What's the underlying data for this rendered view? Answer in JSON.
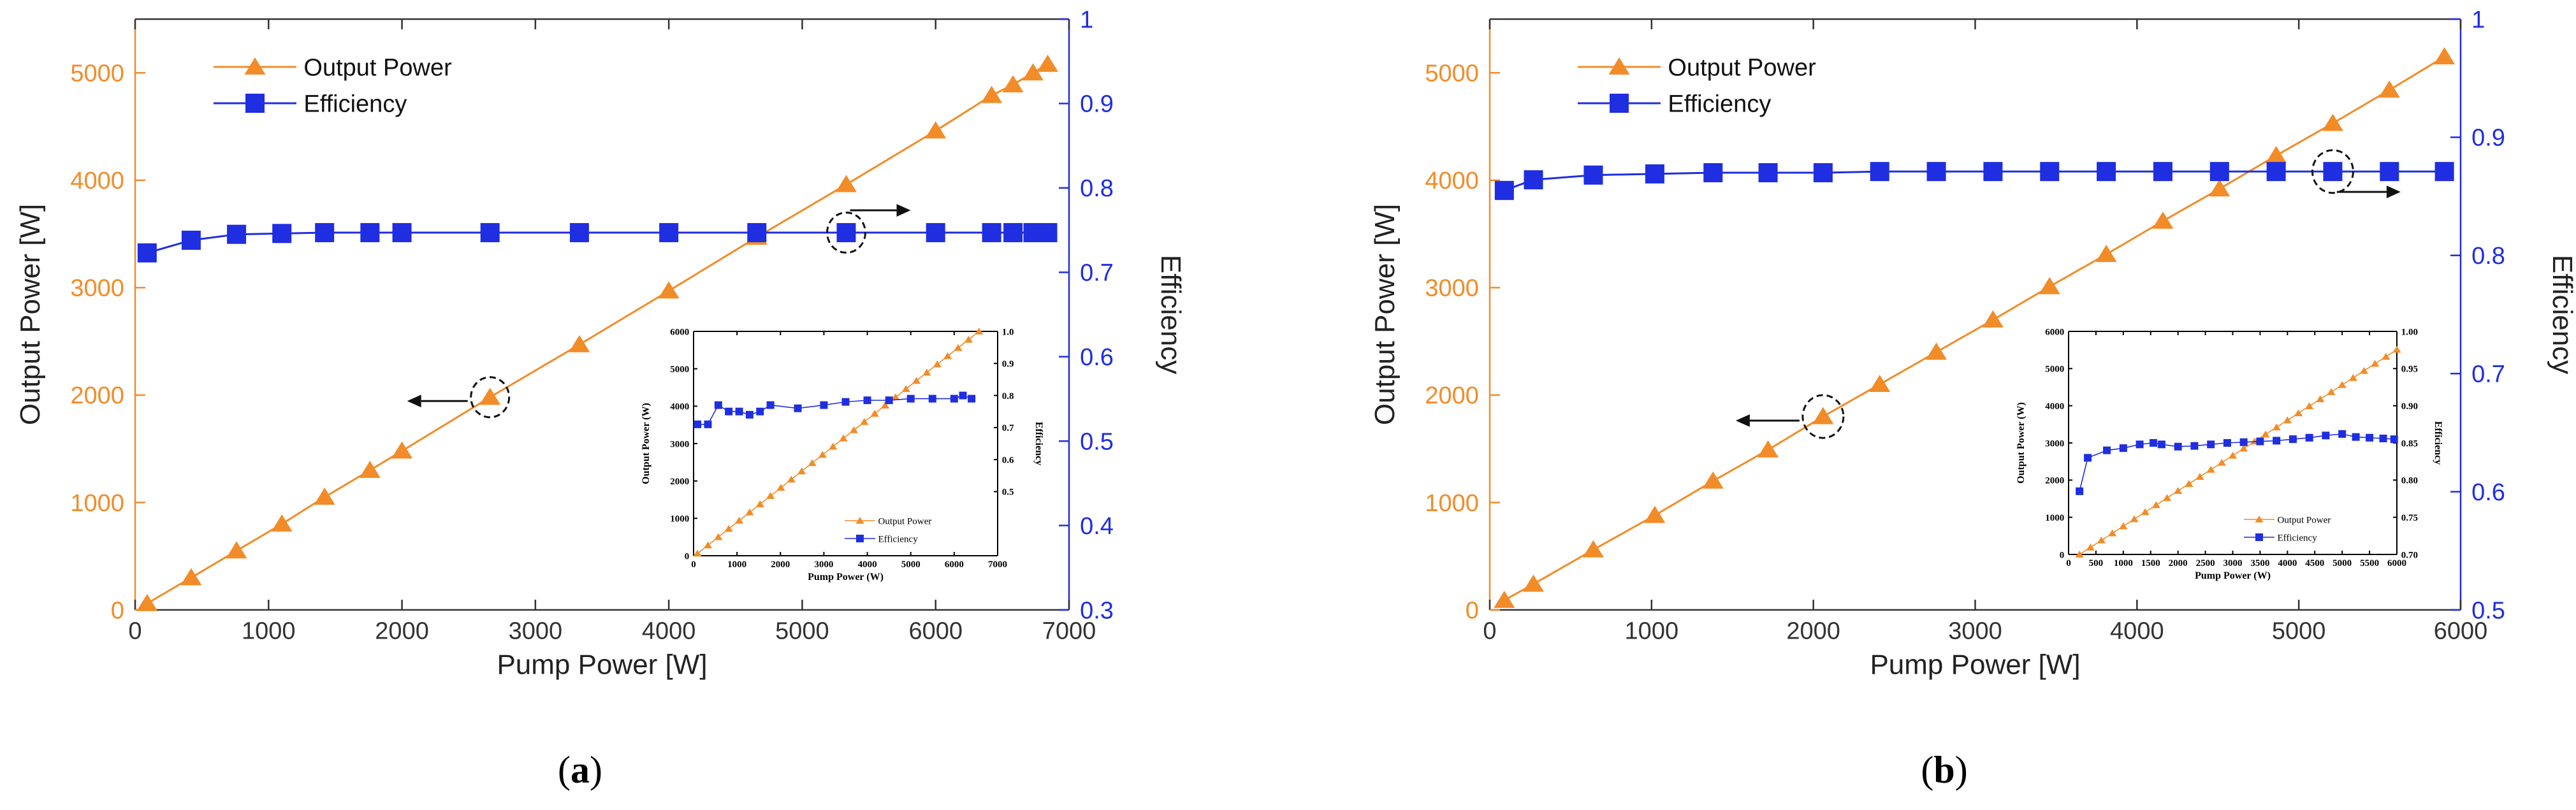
{
  "panels": [
    {
      "label_open": "(",
      "label_letter": "a",
      "label_close": ")"
    },
    {
      "label_open": "(",
      "label_letter": "b",
      "label_close": ")"
    }
  ],
  "colors": {
    "orange": "#F28C28",
    "blue": "#1F2EE0",
    "black": "#000000"
  },
  "chart_data": [
    {
      "type": "line",
      "xlabel": "Pump Power [W]",
      "ylabel_left": "Output Power [W]",
      "ylabel_right": "Efficiency",
      "xlim": [
        0,
        7000
      ],
      "ylim_left": [
        0,
        5500
      ],
      "ylim_right": [
        0.3,
        1
      ],
      "xticks": [
        0,
        1000,
        2000,
        3000,
        4000,
        5000,
        6000,
        7000
      ],
      "yticks_left": [
        0,
        1000,
        2000,
        3000,
        4000,
        5000
      ],
      "yticks_right": [
        0.3,
        0.4,
        0.5,
        0.6,
        0.7,
        0.8,
        0.9,
        1
      ],
      "legend_position": "top-left",
      "grid": false,
      "series": [
        {
          "name": "Output Power",
          "axis": "left",
          "marker": "triangle",
          "x": [
            90,
            420,
            760,
            1100,
            1420,
            1760,
            2000,
            2660,
            3330,
            4000,
            4660,
            5330,
            6000,
            6420,
            6580,
            6730,
            6840
          ],
          "y": [
            60,
            300,
            550,
            800,
            1050,
            1300,
            1480,
            1980,
            2470,
            2970,
            3470,
            3960,
            4460,
            4790,
            4890,
            5000,
            5080
          ]
        },
        {
          "name": "Efficiency",
          "axis": "right",
          "marker": "square",
          "x": [
            90,
            420,
            760,
            1100,
            1420,
            1760,
            2000,
            2660,
            3330,
            4000,
            4660,
            5330,
            6000,
            6420,
            6580,
            6730,
            6840
          ],
          "y": [
            0.723,
            0.738,
            0.745,
            0.746,
            0.747,
            0.747,
            0.747,
            0.747,
            0.747,
            0.747,
            0.747,
            0.747,
            0.747,
            0.747,
            0.747,
            0.747,
            0.747
          ]
        }
      ],
      "annotations": {
        "circle_left": {
          "x": 2660,
          "y": 1980,
          "arrow": "left"
        },
        "circle_right": {
          "x": 5330,
          "y_right": 0.747,
          "arrow": "right"
        }
      },
      "inset": {
        "xlabel": "Pump Power (W)",
        "ylabel_left": "Output Power (W)",
        "ylabel_right": "Efficiency",
        "xlim": [
          0,
          7000
        ],
        "ylim_left": [
          0,
          6000
        ],
        "ylim_right": [
          0.3,
          1.0
        ],
        "xticks": [
          0,
          1000,
          2000,
          3000,
          4000,
          5000,
          6000,
          7000
        ],
        "yticks_left": [
          0,
          1000,
          2000,
          3000,
          4000,
          5000,
          6000
        ],
        "yticks_right": [
          0.5,
          0.6,
          0.7,
          0.8,
          0.9,
          1.0
        ],
        "yticks_right_labels": [
          "0.5",
          "0.6",
          "0.7",
          "0.8",
          "0.9",
          "1.0"
        ],
        "series": [
          {
            "name": "Output Power",
            "axis": "left",
            "marker": "triangle",
            "x": [
              90,
              330,
              570,
              810,
              1050,
              1290,
              1530,
              1770,
              2010,
              2250,
              2490,
              2730,
              2970,
              3210,
              3450,
              3690,
              3930,
              4170,
              4410,
              4650,
              4890,
              5130,
              5370,
              5610,
              5850,
              6090,
              6330,
              6570
            ],
            "y": [
              60,
              280,
              500,
              720,
              940,
              1160,
              1380,
              1600,
              1820,
              2040,
              2260,
              2480,
              2700,
              2920,
              3140,
              3360,
              3580,
              3800,
              4020,
              4240,
              4460,
              4680,
              4900,
              5120,
              5340,
              5560,
              5780,
              6000
            ]
          },
          {
            "name": "Efficiency",
            "axis": "right",
            "marker": "square",
            "x": [
              90,
              330,
              570,
              810,
              1050,
              1290,
              1530,
              1770,
              2400,
              3000,
              3500,
              4000,
              4500,
              5000,
              5500,
              6000,
              6200,
              6400
            ],
            "y": [
              0.71,
              0.71,
              0.77,
              0.75,
              0.75,
              0.74,
              0.75,
              0.77,
              0.76,
              0.77,
              0.78,
              0.785,
              0.785,
              0.79,
              0.79,
              0.79,
              0.8,
              0.79
            ]
          }
        ]
      }
    },
    {
      "type": "line",
      "xlabel": "Pump Power [W]",
      "ylabel_left": "Output Power [W]",
      "ylabel_right": "Efficiency",
      "xlim": [
        0,
        6000
      ],
      "ylim_left": [
        0,
        5500
      ],
      "ylim_right": [
        0.5,
        1
      ],
      "xticks": [
        0,
        1000,
        2000,
        3000,
        4000,
        5000,
        6000
      ],
      "yticks_left": [
        0,
        1000,
        2000,
        3000,
        4000,
        5000
      ],
      "yticks_right": [
        0.5,
        0.6,
        0.7,
        0.8,
        0.9,
        1
      ],
      "legend_position": "top-left",
      "grid": false,
      "series": [
        {
          "name": "Output Power",
          "axis": "left",
          "marker": "triangle",
          "x": [
            90,
            270,
            640,
            1020,
            1380,
            1720,
            2060,
            2410,
            2760,
            3110,
            3460,
            3810,
            4160,
            4510,
            4860,
            5210,
            5560,
            5900
          ],
          "y": [
            90,
            240,
            560,
            880,
            1200,
            1490,
            1800,
            2100,
            2400,
            2700,
            3010,
            3310,
            3620,
            3920,
            4230,
            4530,
            4840,
            5150
          ]
        },
        {
          "name": "Efficiency",
          "axis": "right",
          "marker": "square",
          "x": [
            90,
            270,
            640,
            1020,
            1380,
            1720,
            2060,
            2410,
            2760,
            3110,
            3460,
            3810,
            4160,
            4510,
            4860,
            5210,
            5560,
            5900
          ],
          "y": [
            0.855,
            0.864,
            0.868,
            0.869,
            0.87,
            0.87,
            0.87,
            0.871,
            0.871,
            0.871,
            0.871,
            0.871,
            0.871,
            0.871,
            0.871,
            0.871,
            0.871,
            0.871
          ]
        }
      ],
      "annotations": {
        "circle_left": {
          "x": 2060,
          "y": 1800,
          "arrow": "left"
        },
        "circle_right": {
          "x": 5210,
          "y_right": 0.871,
          "arrow": "right"
        }
      },
      "inset": {
        "xlabel": "Pump Power (W)",
        "ylabel_left": "Output Power (W)",
        "ylabel_right": "Efficiency",
        "xlim": [
          0,
          6000
        ],
        "ylim_left": [
          0,
          6000
        ],
        "ylim_right": [
          0.7,
          1.0
        ],
        "xticks": [
          0,
          500,
          1000,
          1500,
          2000,
          2500,
          3000,
          3500,
          4000,
          4500,
          5000,
          5500,
          6000
        ],
        "yticks_left": [
          0,
          1000,
          2000,
          3000,
          4000,
          5000,
          6000
        ],
        "yticks_right": [
          0.7,
          0.75,
          0.8,
          0.85,
          0.9,
          0.95,
          1.0
        ],
        "yticks_right_labels": [
          "0.70",
          "0.75",
          "0.80",
          "0.85",
          "0.90",
          "0.95",
          "1.00"
        ],
        "series": [
          {
            "name": "Output Power",
            "axis": "left",
            "marker": "triangle",
            "x": [
              200,
              400,
              600,
              800,
              1000,
              1200,
              1400,
              1600,
              1800,
              2000,
              2200,
              2400,
              2600,
              2800,
              3000,
              3200,
              3400,
              3600,
              3800,
              4000,
              4200,
              4400,
              4600,
              4800,
              5000,
              5200,
              5400,
              5600,
              5800,
              6000
            ],
            "y": [
              0,
              190,
              380,
              570,
              760,
              950,
              1140,
              1330,
              1520,
              1710,
              1900,
              2090,
              2280,
              2470,
              2660,
              2850,
              3040,
              3230,
              3420,
              3610,
              3800,
              3990,
              4180,
              4370,
              4560,
              4750,
              4940,
              5130,
              5320,
              5510
            ]
          },
          {
            "name": "Efficiency",
            "axis": "right",
            "marker": "square",
            "x": [
              200,
              350,
              700,
              1000,
              1300,
              1550,
              1700,
              2000,
              2300,
              2600,
              2900,
              3200,
              3500,
              3800,
              4100,
              4400,
              4700,
              5000,
              5250,
              5500,
              5750,
              5950
            ],
            "y": [
              0.785,
              0.83,
              0.84,
              0.843,
              0.848,
              0.85,
              0.848,
              0.845,
              0.846,
              0.848,
              0.85,
              0.851,
              0.852,
              0.853,
              0.855,
              0.857,
              0.86,
              0.862,
              0.858,
              0.857,
              0.856,
              0.855
            ]
          }
        ]
      }
    }
  ]
}
